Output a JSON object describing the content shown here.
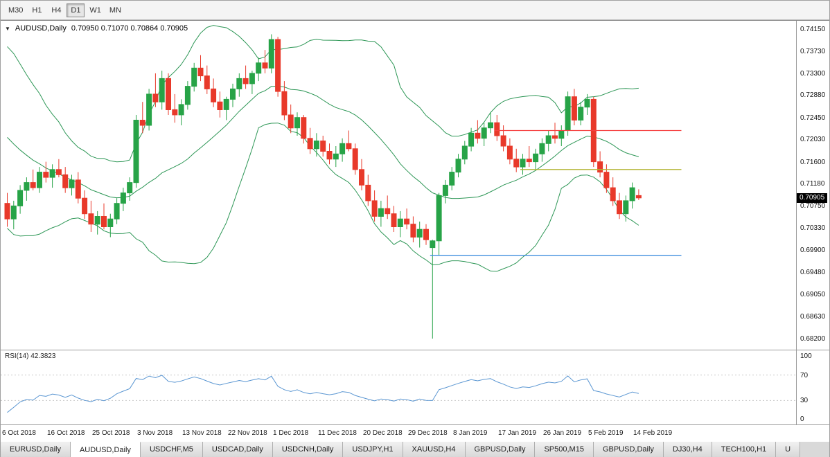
{
  "toolbar": {
    "timeframes": [
      "M30",
      "H1",
      "H4",
      "D1",
      "W1",
      "MN"
    ],
    "active": "D1"
  },
  "chart": {
    "collapse_icon": "▼",
    "title": "AUDUSD,Daily",
    "ohlc": "0.70950 0.71070 0.70864 0.70905",
    "price_badge": "0.70905"
  },
  "rsi_panel": {
    "label": "RSI(14) 42.3823",
    "axis_labels": [
      100,
      70,
      30,
      0
    ],
    "dotted_levels": [
      70,
      30
    ]
  },
  "tabs": [
    {
      "label": "EURUSD,Daily",
      "active": false
    },
    {
      "label": "AUDUSD,Daily",
      "active": true
    },
    {
      "label": "USDCHF,M5",
      "active": false
    },
    {
      "label": "USDCAD,Daily",
      "active": false
    },
    {
      "label": "USDCNH,Daily",
      "active": false
    },
    {
      "label": "USDJPY,H1",
      "active": false
    },
    {
      "label": "XAUUSD,H4",
      "active": false
    },
    {
      "label": "GBPUSD,Daily",
      "active": false
    },
    {
      "label": "SP500,M15",
      "active": false
    },
    {
      "label": "GBPUSD,Daily",
      "active": false
    },
    {
      "label": "DJ30,H4",
      "active": false
    },
    {
      "label": "TECH100,H1",
      "active": false
    },
    {
      "label": "U",
      "active": false
    }
  ],
  "colors": {
    "bull": "#27a347",
    "bear": "#e8392a",
    "bands": "#2c9655",
    "rsi_line": "#5a96d2",
    "rsi_levels": "#c8c8c8",
    "hline_red": "#f64141",
    "hline_olive": "#b0b32e",
    "hline_blue": "#3e8ede",
    "badge_bg": "#000000",
    "badge_text": "#ffffff"
  },
  "chart_data": {
    "type": "candlestick",
    "symbol": "AUDUSD",
    "timeframe": "Daily",
    "last_candle_ohlc": {
      "open": 0.7095,
      "high": 0.7107,
      "low": 0.70864,
      "close": 0.70905
    },
    "y_axis": {
      "min": 0.682,
      "max": 0.7415,
      "tick_labels": [
        "0.74150",
        "0.73730",
        "0.73300",
        "0.72880",
        "0.72450",
        "0.72030",
        "0.71600",
        "0.71180",
        "0.70750",
        "0.70330",
        "0.69900",
        "0.69480",
        "0.69050",
        "0.68630",
        "0.68200"
      ]
    },
    "x_tick_labels": [
      "6 Oct 2018",
      "16 Oct 2018",
      "25 Oct 2018",
      "3 Nov 2018",
      "13 Nov 2018",
      "22 Nov 2018",
      "1 Dec 2018",
      "11 Dec 2018",
      "20 Dec 2018",
      "29 Dec 2018",
      "8 Jan 2019",
      "17 Jan 2019",
      "26 Jan 2019",
      "5 Feb 2019",
      "14 Feb 2019"
    ],
    "x_tick_indices": [
      0,
      7,
      14,
      21,
      28,
      35,
      42,
      49,
      56,
      63,
      70,
      77,
      84,
      91,
      98
    ],
    "indicators": {
      "bollinger_bands": {
        "period": 20,
        "deviation": 2
      },
      "rsi": {
        "period": 14,
        "current_value": 42.3823
      }
    },
    "hlines": [
      {
        "name": "resistance-line-red",
        "color_key": "hline_red",
        "price": 0.722,
        "from_index": 76,
        "to_index": 105
      },
      {
        "name": "level-line-olive",
        "color_key": "hline_olive",
        "price": 0.7145,
        "from_index": 80,
        "to_index": 105
      },
      {
        "name": "support-line-blue",
        "color_key": "hline_blue",
        "price": 0.698,
        "from_index": 66,
        "to_index": 105
      }
    ],
    "bb_warmup_closes": [
      0.734,
      0.733,
      0.7335,
      0.732,
      0.73,
      0.728,
      0.729,
      0.726,
      0.724,
      0.725,
      0.722,
      0.72,
      0.718,
      0.719,
      0.715,
      0.713,
      0.714,
      0.711,
      0.709,
      0.707
    ],
    "candles_ohlc": [
      [
        0.708,
        0.71,
        0.7035,
        0.705
      ],
      [
        0.705,
        0.7085,
        0.703,
        0.7075
      ],
      [
        0.7075,
        0.7115,
        0.706,
        0.7105
      ],
      [
        0.7105,
        0.713,
        0.7085,
        0.712
      ],
      [
        0.712,
        0.7145,
        0.7105,
        0.711
      ],
      [
        0.711,
        0.715,
        0.71,
        0.714
      ],
      [
        0.714,
        0.716,
        0.712,
        0.713
      ],
      [
        0.713,
        0.7155,
        0.711,
        0.7145
      ],
      [
        0.7145,
        0.7165,
        0.713,
        0.7135
      ],
      [
        0.7135,
        0.715,
        0.71,
        0.711
      ],
      [
        0.711,
        0.7135,
        0.7095,
        0.7125
      ],
      [
        0.7125,
        0.714,
        0.708,
        0.709
      ],
      [
        0.709,
        0.7105,
        0.705,
        0.706
      ],
      [
        0.706,
        0.7085,
        0.7025,
        0.704
      ],
      [
        0.704,
        0.7065,
        0.702,
        0.7055
      ],
      [
        0.7055,
        0.708,
        0.703,
        0.7035
      ],
      [
        0.7035,
        0.706,
        0.7015,
        0.705
      ],
      [
        0.705,
        0.709,
        0.704,
        0.708
      ],
      [
        0.708,
        0.711,
        0.7065,
        0.71
      ],
      [
        0.71,
        0.713,
        0.7085,
        0.712
      ],
      [
        0.712,
        0.725,
        0.711,
        0.724
      ],
      [
        0.724,
        0.7275,
        0.7215,
        0.723
      ],
      [
        0.723,
        0.73,
        0.722,
        0.729
      ],
      [
        0.729,
        0.733,
        0.7265,
        0.7275
      ],
      [
        0.7275,
        0.7335,
        0.726,
        0.732
      ],
      [
        0.732,
        0.733,
        0.725,
        0.726
      ],
      [
        0.726,
        0.729,
        0.7235,
        0.725
      ],
      [
        0.725,
        0.728,
        0.723,
        0.727
      ],
      [
        0.727,
        0.7315,
        0.726,
        0.7305
      ],
      [
        0.7305,
        0.735,
        0.7295,
        0.734
      ],
      [
        0.734,
        0.7365,
        0.7315,
        0.7325
      ],
      [
        0.7325,
        0.7345,
        0.729,
        0.73
      ],
      [
        0.73,
        0.732,
        0.7265,
        0.7275
      ],
      [
        0.7275,
        0.7295,
        0.7245,
        0.726
      ],
      [
        0.726,
        0.7285,
        0.724,
        0.728
      ],
      [
        0.728,
        0.731,
        0.7265,
        0.73
      ],
      [
        0.73,
        0.733,
        0.7285,
        0.732
      ],
      [
        0.732,
        0.7345,
        0.73,
        0.731
      ],
      [
        0.731,
        0.7335,
        0.729,
        0.733
      ],
      [
        0.733,
        0.736,
        0.7315,
        0.735
      ],
      [
        0.735,
        0.7375,
        0.733,
        0.734
      ],
      [
        0.734,
        0.7405,
        0.733,
        0.7395
      ],
      [
        0.7395,
        0.74,
        0.7285,
        0.7295
      ],
      [
        0.7295,
        0.7315,
        0.724,
        0.725
      ],
      [
        0.725,
        0.727,
        0.7215,
        0.7225
      ],
      [
        0.7225,
        0.7255,
        0.721,
        0.7245
      ],
      [
        0.7245,
        0.725,
        0.7195,
        0.7205
      ],
      [
        0.7205,
        0.7225,
        0.7175,
        0.7185
      ],
      [
        0.7185,
        0.7215,
        0.717,
        0.72
      ],
      [
        0.72,
        0.721,
        0.717,
        0.718
      ],
      [
        0.718,
        0.7195,
        0.7155,
        0.7165
      ],
      [
        0.7165,
        0.719,
        0.715,
        0.7175
      ],
      [
        0.7175,
        0.7205,
        0.716,
        0.7195
      ],
      [
        0.7195,
        0.722,
        0.718,
        0.7185
      ],
      [
        0.7185,
        0.7195,
        0.7135,
        0.7145
      ],
      [
        0.7145,
        0.7165,
        0.7105,
        0.7115
      ],
      [
        0.7115,
        0.7135,
        0.7075,
        0.7085
      ],
      [
        0.7085,
        0.7105,
        0.7045,
        0.7055
      ],
      [
        0.7055,
        0.7085,
        0.7035,
        0.707
      ],
      [
        0.707,
        0.7095,
        0.705,
        0.706
      ],
      [
        0.706,
        0.7075,
        0.7025,
        0.7035
      ],
      [
        0.7035,
        0.7065,
        0.7015,
        0.705
      ],
      [
        0.705,
        0.707,
        0.703,
        0.704
      ],
      [
        0.704,
        0.7055,
        0.7005,
        0.7015
      ],
      [
        0.7015,
        0.7045,
        0.6995,
        0.703
      ],
      [
        0.703,
        0.704,
        0.7,
        0.701
      ],
      [
        0.6995,
        0.701,
        0.682,
        0.7008
      ],
      [
        0.7008,
        0.71,
        0.698,
        0.7095
      ],
      [
        0.7095,
        0.7125,
        0.708,
        0.7115
      ],
      [
        0.7115,
        0.715,
        0.7105,
        0.714
      ],
      [
        0.714,
        0.7175,
        0.713,
        0.7165
      ],
      [
        0.7165,
        0.72,
        0.7155,
        0.719
      ],
      [
        0.719,
        0.7225,
        0.718,
        0.7215
      ],
      [
        0.7215,
        0.724,
        0.7195,
        0.7205
      ],
      [
        0.7205,
        0.7235,
        0.719,
        0.7225
      ],
      [
        0.7225,
        0.7255,
        0.7215,
        0.7235
      ],
      [
        0.7235,
        0.725,
        0.72,
        0.721
      ],
      [
        0.721,
        0.723,
        0.718,
        0.719
      ],
      [
        0.719,
        0.7205,
        0.7155,
        0.7165
      ],
      [
        0.7165,
        0.7185,
        0.714,
        0.715
      ],
      [
        0.715,
        0.7175,
        0.7135,
        0.7165
      ],
      [
        0.7165,
        0.719,
        0.715,
        0.716
      ],
      [
        0.716,
        0.7185,
        0.7145,
        0.7175
      ],
      [
        0.7175,
        0.7205,
        0.716,
        0.7195
      ],
      [
        0.7195,
        0.722,
        0.718,
        0.721
      ],
      [
        0.721,
        0.7235,
        0.7195,
        0.7205
      ],
      [
        0.7205,
        0.723,
        0.719,
        0.722
      ],
      [
        0.722,
        0.7295,
        0.721,
        0.7285
      ],
      [
        0.7285,
        0.73,
        0.723,
        0.724
      ],
      [
        0.724,
        0.7275,
        0.723,
        0.7265
      ],
      [
        0.7265,
        0.729,
        0.725,
        0.728
      ],
      [
        0.728,
        0.7285,
        0.715,
        0.716
      ],
      [
        0.716,
        0.718,
        0.713,
        0.714
      ],
      [
        0.714,
        0.7155,
        0.71,
        0.711
      ],
      [
        0.711,
        0.713,
        0.7075,
        0.7085
      ],
      [
        0.7085,
        0.71,
        0.705,
        0.706
      ],
      [
        0.706,
        0.7095,
        0.7045,
        0.7085
      ],
      [
        0.7085,
        0.712,
        0.707,
        0.711
      ],
      [
        0.7095,
        0.7107,
        0.70864,
        0.70905
      ]
    ]
  }
}
